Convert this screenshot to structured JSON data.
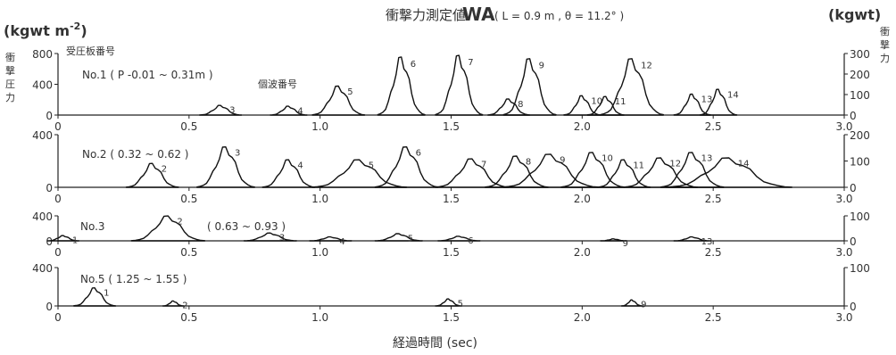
{
  "header": {
    "title_jp": "衝撃力測定値",
    "title_var": "WA",
    "title_params": "( L = 0.9 m ,  θ = 11.2° )",
    "left_unit": "(kgwt m",
    "left_unit_exp": "-2",
    "left_unit_close": ")",
    "right_unit": "(kgwt)",
    "left_axis_chars": [
      "衝",
      "撃",
      "圧",
      "力"
    ],
    "right_axis_chars": [
      "衝",
      "撃",
      "力"
    ],
    "plate_label": "受圧板番号",
    "wave_label": "個波番号"
  },
  "xaxis": {
    "label": "経過時間 (sec)"
  },
  "chart_data": [
    {
      "type": "area",
      "name": "No.1 ( P -0.01 ~ 0.31m )",
      "xlim": [
        0,
        3.0
      ],
      "ylim_left": [
        0,
        800
      ],
      "ylim_right": [
        0,
        300
      ],
      "left_ticks": [
        "800",
        "400",
        "0"
      ],
      "right_ticks": [
        "300",
        "200",
        "100",
        "0"
      ],
      "x_tick_labels": [
        "0",
        "0.5",
        "1.0",
        "1.5",
        "2.0",
        "2.5",
        "3.0"
      ],
      "peaks": [
        {
          "n": "3",
          "t": 0.62,
          "v": 120,
          "fill": "dark",
          "w": 0.08
        },
        {
          "n": "4",
          "t": 0.88,
          "v": 110,
          "fill": "none",
          "w": 0.07
        },
        {
          "n": "5",
          "t": 1.07,
          "v": 360,
          "fill": "none",
          "w": 0.1
        },
        {
          "n": "6",
          "t": 1.31,
          "v": 720,
          "fill": "dark",
          "w": 0.09
        },
        {
          "n": "7",
          "t": 1.53,
          "v": 740,
          "fill": "light",
          "w": 0.09
        },
        {
          "n": "8",
          "t": 1.72,
          "v": 200,
          "fill": "none",
          "w": 0.08
        },
        {
          "n": "9",
          "t": 1.8,
          "v": 700,
          "fill": "dark",
          "w": 0.1
        },
        {
          "n": "10",
          "t": 2.0,
          "v": 240,
          "fill": "none",
          "w": 0.07
        },
        {
          "n": "11",
          "t": 2.09,
          "v": 230,
          "fill": "none",
          "w": 0.07
        },
        {
          "n": "12",
          "t": 2.19,
          "v": 700,
          "fill": "dark",
          "w": 0.12
        },
        {
          "n": "13",
          "t": 2.42,
          "v": 260,
          "fill": "none",
          "w": 0.07
        },
        {
          "n": "14",
          "t": 2.52,
          "v": 320,
          "fill": "none",
          "w": 0.07
        }
      ]
    },
    {
      "type": "area",
      "name": "No.2 ( 0.32 ~ 0.62 )",
      "xlim": [
        0,
        3.0
      ],
      "ylim_left": [
        0,
        600
      ],
      "ylim_right": [
        0,
        200
      ],
      "left_ticks": [
        "400",
        "0"
      ],
      "right_ticks": [
        "200",
        "100",
        "0"
      ],
      "x_tick_labels": [
        "0",
        "0.5",
        "1.0",
        "1.5",
        "2.0",
        "2.5",
        "3.0"
      ],
      "peaks": [
        {
          "n": "2",
          "t": 0.36,
          "v": 260,
          "fill": "none",
          "w": 0.1
        },
        {
          "n": "3",
          "t": 0.64,
          "v": 440,
          "fill": "dark",
          "w": 0.11
        },
        {
          "n": "4",
          "t": 0.88,
          "v": 300,
          "fill": "light",
          "w": 0.1
        },
        {
          "n": "5",
          "t": 1.15,
          "v": 300,
          "fill": "none",
          "w": 0.18
        },
        {
          "n": "6",
          "t": 1.33,
          "v": 440,
          "fill": "dark",
          "w": 0.12
        },
        {
          "n": "7",
          "t": 1.58,
          "v": 310,
          "fill": "light",
          "w": 0.14
        },
        {
          "n": "8",
          "t": 1.75,
          "v": 340,
          "fill": "none",
          "w": 0.12
        },
        {
          "n": "9",
          "t": 1.88,
          "v": 360,
          "fill": "dark",
          "w": 0.18
        },
        {
          "n": "10",
          "t": 2.04,
          "v": 380,
          "fill": "light",
          "w": 0.12
        },
        {
          "n": "11",
          "t": 2.16,
          "v": 300,
          "fill": "none",
          "w": 0.1
        },
        {
          "n": "12",
          "t": 2.3,
          "v": 320,
          "fill": "dark",
          "w": 0.14
        },
        {
          "n": "13",
          "t": 2.42,
          "v": 380,
          "fill": "light",
          "w": 0.12
        },
        {
          "n": "14",
          "t": 2.56,
          "v": 320,
          "fill": "none",
          "w": 0.24
        }
      ]
    },
    {
      "type": "area",
      "name": "No.3",
      "range_label": "( 0.63 ~ 0.93 )",
      "xlim": [
        0,
        3.0
      ],
      "ylim_left": [
        0,
        400
      ],
      "ylim_right": [
        0,
        100
      ],
      "left_ticks": [
        "400",
        "0"
      ],
      "right_ticks": [
        "100",
        "0"
      ],
      "x_tick_labels": [
        "0",
        "0.5",
        "1.0",
        "1.5",
        "2.0",
        "2.5",
        "3.0"
      ],
      "peaks": [
        {
          "n": "1",
          "t": 0.02,
          "v": 80,
          "fill": "none",
          "w": 0.06
        },
        {
          "n": "2",
          "t": 0.42,
          "v": 380,
          "fill": "none",
          "w": 0.14
        },
        {
          "n": "3",
          "t": 0.81,
          "v": 120,
          "fill": "dark",
          "w": 0.1
        },
        {
          "n": "4",
          "t": 1.04,
          "v": 60,
          "fill": "none",
          "w": 0.08
        },
        {
          "n": "5",
          "t": 1.3,
          "v": 110,
          "fill": "none",
          "w": 0.09
        },
        {
          "n": "6",
          "t": 1.53,
          "v": 70,
          "fill": "dark",
          "w": 0.08
        },
        {
          "n": "9",
          "t": 2.12,
          "v": 30,
          "fill": "none",
          "w": 0.05
        },
        {
          "n": "13",
          "t": 2.42,
          "v": 60,
          "fill": "dark",
          "w": 0.07
        }
      ]
    },
    {
      "type": "area",
      "name": "No.5 ( 1.25 ~ 1.55 )",
      "xlim": [
        0,
        3.0
      ],
      "ylim_left": [
        0,
        400
      ],
      "ylim_right": [
        0,
        100
      ],
      "left_ticks": [
        "400",
        "0"
      ],
      "right_ticks": [
        "100",
        "0"
      ],
      "x_tick_labels": [
        "0",
        "0.5",
        "1.0",
        "1.5",
        "2.0",
        "2.5",
        "3.0"
      ],
      "peaks": [
        {
          "n": "1",
          "t": 0.14,
          "v": 180,
          "fill": "none",
          "w": 0.08
        },
        {
          "n": "2",
          "t": 0.44,
          "v": 50,
          "fill": "none",
          "w": 0.04
        },
        {
          "n": "5",
          "t": 1.49,
          "v": 70,
          "fill": "none",
          "w": 0.05
        },
        {
          "n": "9",
          "t": 2.19,
          "v": 60,
          "fill": "none",
          "w": 0.04
        }
      ]
    }
  ]
}
